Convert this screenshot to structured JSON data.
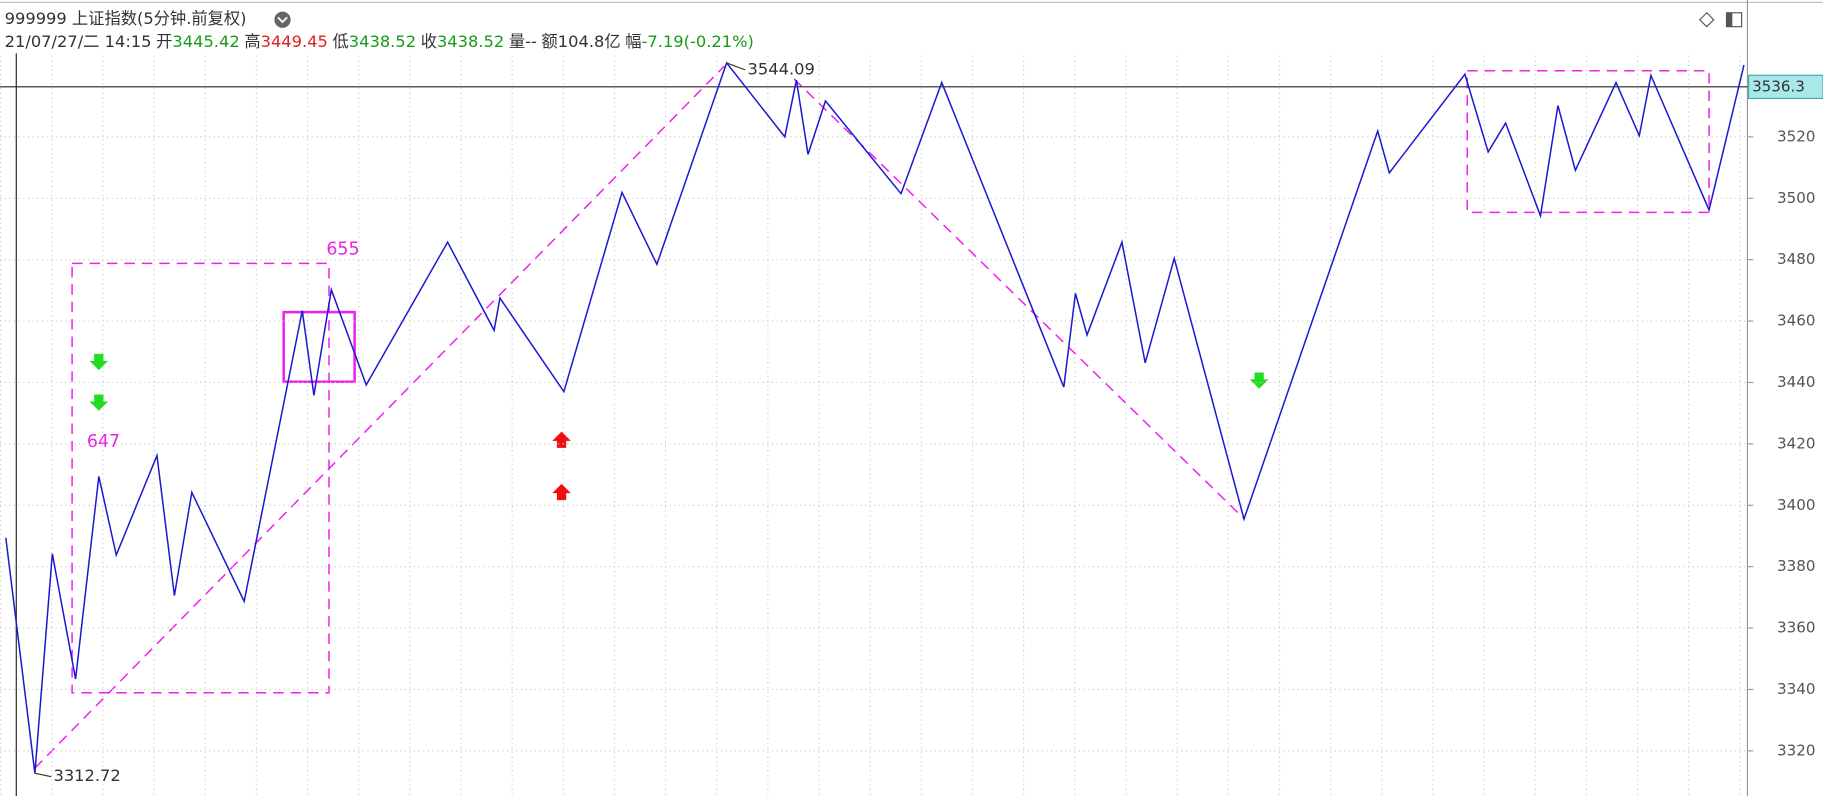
{
  "header": {
    "title": "999999 上证指数(5分钟.前复权)",
    "date": "21/07/27/二 14:15",
    "fields": [
      {
        "label": "开",
        "value": 3445.42,
        "color": "#1a9a1a"
      },
      {
        "label": "高",
        "value": 3449.45,
        "color": "#e02020"
      },
      {
        "label": "低",
        "value": 3438.52,
        "color": "#1a9a1a"
      },
      {
        "label": "收",
        "value": 3438.52,
        "color": "#1a9a1a"
      },
      {
        "label": "量",
        "value": "--",
        "color": "#333333"
      },
      {
        "label": "额",
        "value": "104.8亿",
        "color": "#333333"
      },
      {
        "label": "幅",
        "value": "-7.19(-0.21%)",
        "color": "#1a9a1a"
      }
    ]
  },
  "chart_data": {
    "type": "line",
    "x": [
      1,
      6,
      9,
      13,
      17,
      20,
      27,
      30,
      33,
      42,
      52,
      54,
      57,
      63,
      77,
      85,
      86,
      97,
      107,
      113,
      125,
      135,
      137,
      139,
      142,
      155,
      162,
      183,
      185,
      187,
      193,
      197,
      202,
      214,
      237,
      239,
      252,
      256,
      259,
      265,
      268,
      271,
      278,
      282,
      284,
      294,
      300
    ],
    "series": [
      {
        "name": "zigzag",
        "color": "#1a1ad0",
        "values": [
          3389.4,
          3312.72,
          3384.2,
          3343.4,
          3409.4,
          3383.8,
          3416.2,
          3370.6,
          3404.2,
          3368.7,
          3463.4,
          3435.8,
          3470.2,
          3439.2,
          3485.7,
          3457,
          3467.5,
          3437,
          3501.9,
          3478.5,
          3544.09,
          3520,
          3538.5,
          3514.3,
          3531.7,
          3501.5,
          3537.7,
          3438.5,
          3469,
          3455.5,
          3485.7,
          3446.4,
          3480.4,
          3395.5,
          3521.9,
          3508.3,
          3540.4,
          3515.1,
          3524.5,
          3494.3,
          3530.2,
          3509.1,
          3537.7,
          3520.4,
          3540,
          3496.2,
          3543.4
        ]
      }
    ],
    "xlim": [
      0,
      300.6
    ],
    "ylim": [
      3305.3,
      3547.2
    ],
    "yticks": [
      3320,
      3340,
      3360,
      3380,
      3400,
      3420,
      3440,
      3460,
      3480,
      3500,
      3520
    ],
    "grid": true,
    "last_price": 3536.3,
    "high": 3544.09,
    "low": 3312.72,
    "annotations": [
      "655",
      "647"
    ]
  }
}
